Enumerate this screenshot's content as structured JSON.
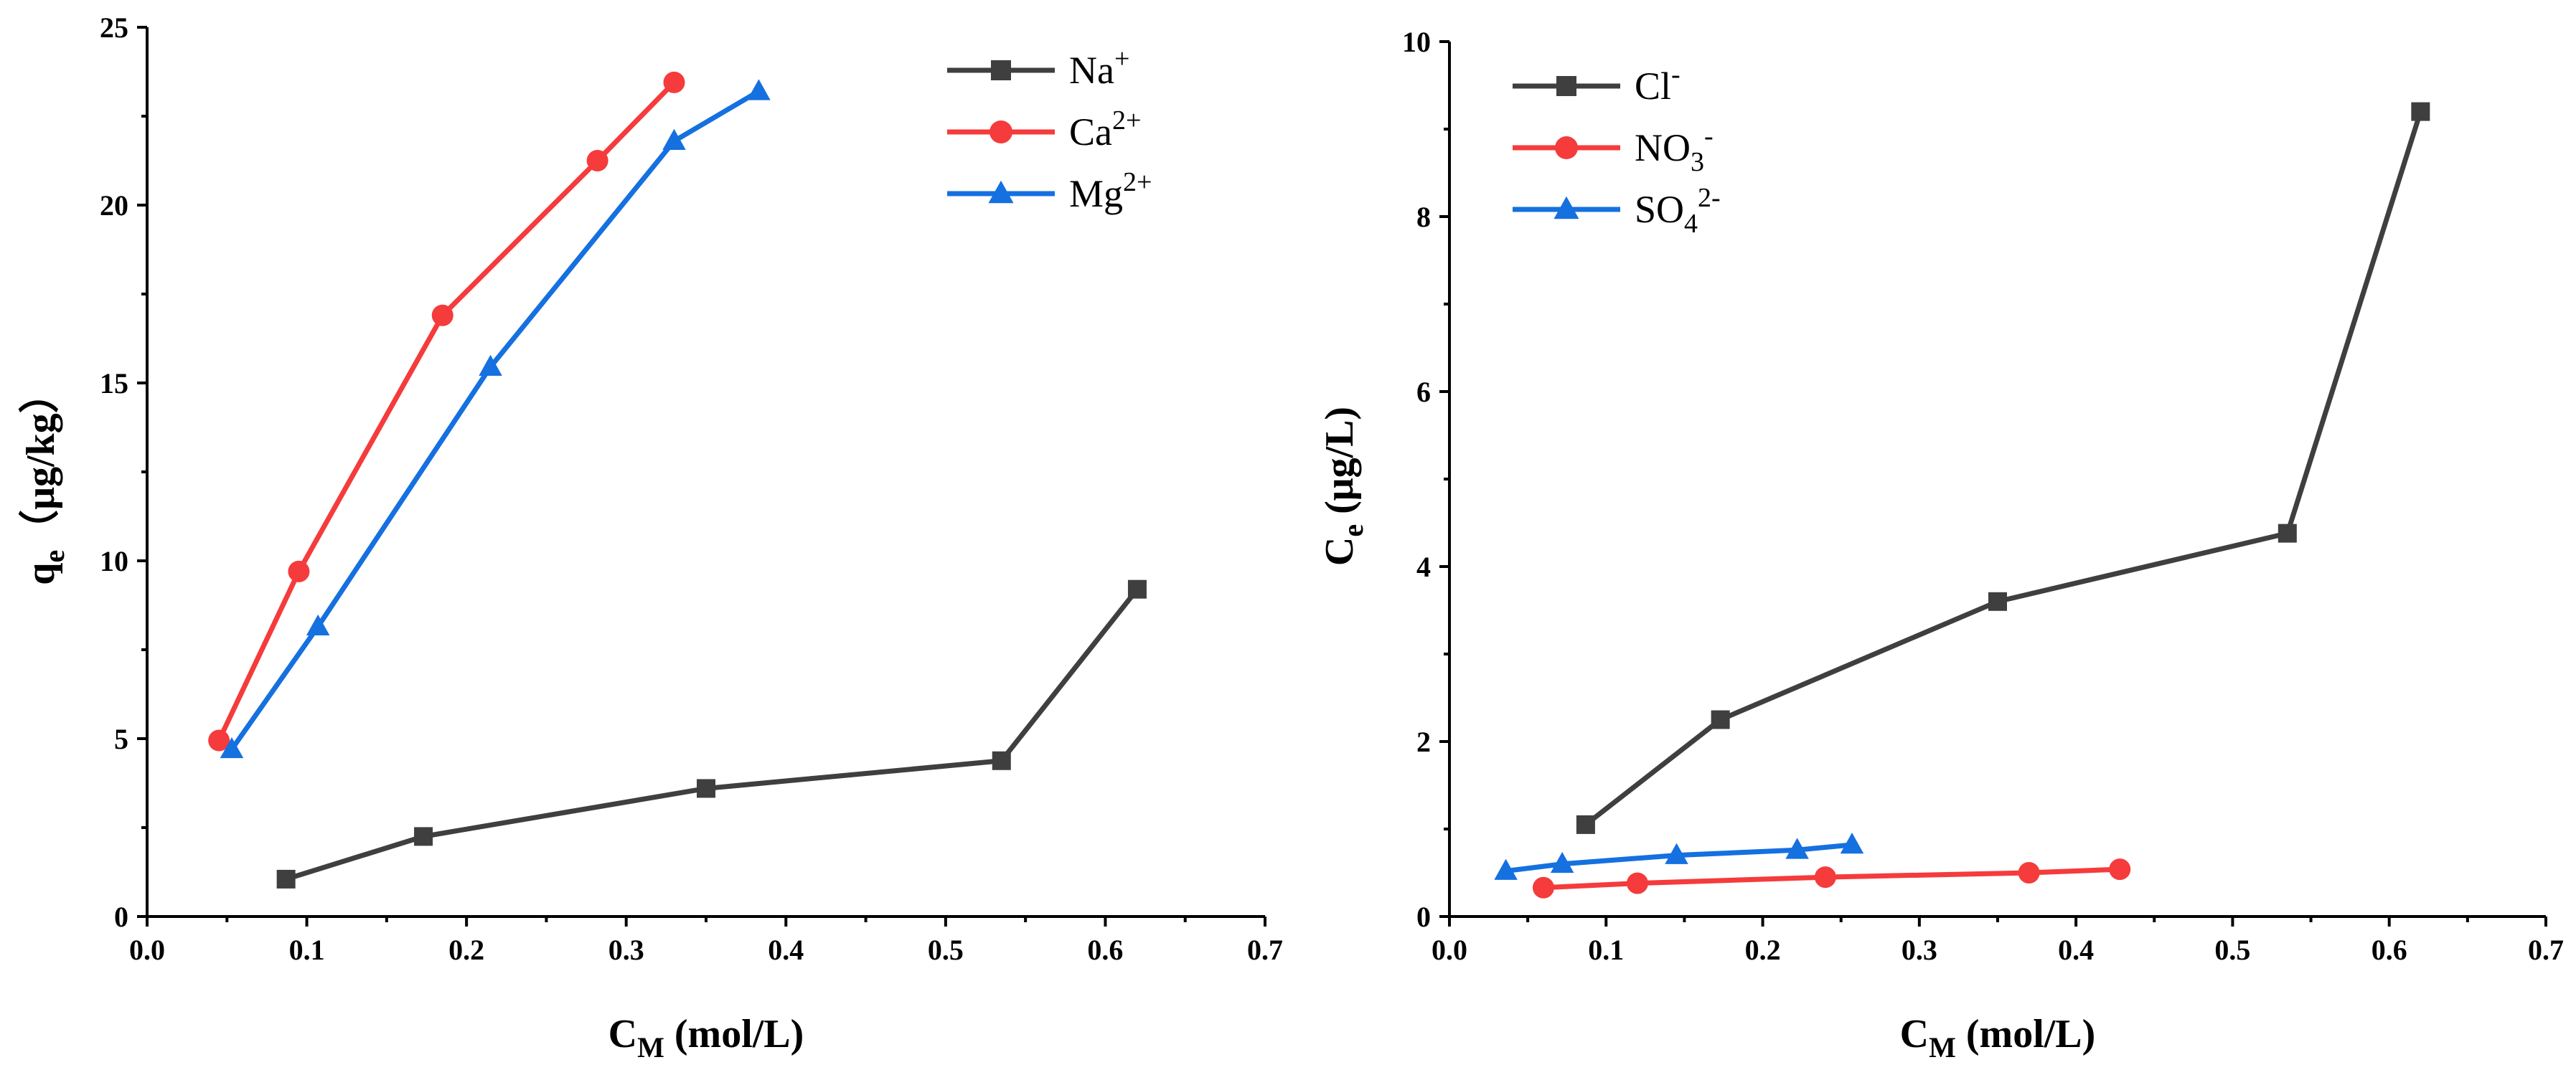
{
  "chart_data": [
    {
      "type": "line",
      "title": "",
      "xlabel_main": "C",
      "xlabel_sub": "M",
      "xlabel_rest": " (mol/L)",
      "ylabel_main": "q",
      "ylabel_sub": "e",
      "ylabel_rest": "（μg/kg）",
      "xlim": [
        0.0,
        0.7
      ],
      "ylim": [
        0,
        25
      ],
      "xticks": [
        "0.0",
        "0.1",
        "0.2",
        "0.3",
        "0.4",
        "0.5",
        "0.6",
        "0.7"
      ],
      "yticks": [
        "0",
        "5",
        "10",
        "15",
        "20",
        "25"
      ],
      "grid": false,
      "legend_position": "top-right",
      "series": [
        {
          "name": "Na",
          "sup": "+",
          "sub": "",
          "color": "#3f3f3f",
          "marker": "square",
          "x": [
            0.087,
            0.173,
            0.35,
            0.535,
            0.62
          ],
          "y": [
            1.05,
            2.25,
            3.6,
            4.38,
            9.2
          ]
        },
        {
          "name": "Ca",
          "sup": "2+",
          "sub": "",
          "color": "#f53b3b",
          "marker": "circle",
          "x": [
            0.045,
            0.095,
            0.185,
            0.282,
            0.33
          ],
          "y": [
            4.95,
            9.7,
            16.9,
            21.25,
            23.45
          ]
        },
        {
          "name": "Mg",
          "sup": "2+",
          "sub": "",
          "color": "#1570e0",
          "marker": "triangle",
          "x": [
            0.053,
            0.107,
            0.215,
            0.33,
            0.383
          ],
          "y": [
            4.7,
            8.15,
            15.45,
            21.8,
            23.2
          ]
        }
      ]
    },
    {
      "type": "line",
      "title": "",
      "xlabel_main": "C",
      "xlabel_sub": "M",
      "xlabel_rest": " (mol/L)",
      "ylabel_main": "C",
      "ylabel_sub": "e",
      "ylabel_rest": " (μg/L)",
      "xlim": [
        0.0,
        0.7
      ],
      "ylim": [
        0,
        10
      ],
      "xticks": [
        "0.0",
        "0.1",
        "0.2",
        "0.3",
        "0.4",
        "0.5",
        "0.6",
        "0.7"
      ],
      "yticks": [
        "0",
        "2",
        "4",
        "6",
        "8",
        "10"
      ],
      "grid": false,
      "legend_position": "top-left",
      "series": [
        {
          "name": "Cl",
          "sup": "-",
          "sub": "",
          "color": "#3f3f3f",
          "marker": "square",
          "x": [
            0.087,
            0.173,
            0.35,
            0.535,
            0.62
          ],
          "y": [
            1.05,
            2.25,
            3.6,
            4.38,
            9.2
          ]
        },
        {
          "name": "NO",
          "sup": "-",
          "sub": "3",
          "color": "#f53b3b",
          "marker": "circle",
          "x": [
            0.06,
            0.12,
            0.24,
            0.37,
            0.428
          ],
          "y": [
            0.33,
            0.38,
            0.45,
            0.5,
            0.54
          ]
        },
        {
          "name": "SO",
          "sup": "2-",
          "sub": "4",
          "color": "#1570e0",
          "marker": "triangle",
          "x": [
            0.036,
            0.072,
            0.145,
            0.222,
            0.257
          ],
          "y": [
            0.52,
            0.6,
            0.7,
            0.76,
            0.82
          ]
        }
      ]
    }
  ]
}
